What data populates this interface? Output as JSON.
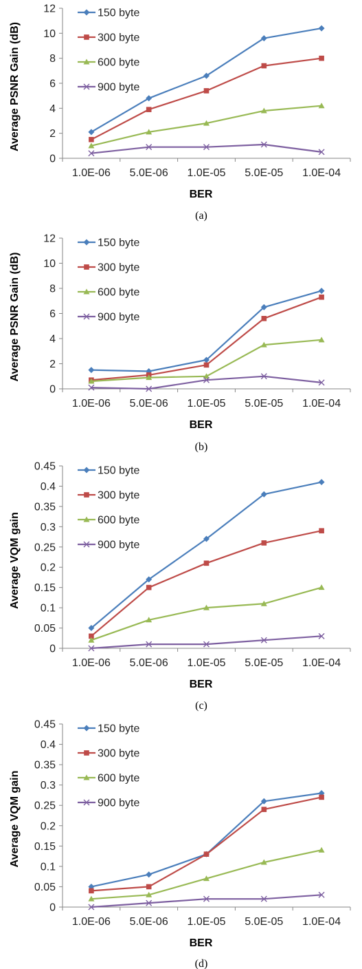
{
  "chart_data": [
    {
      "type": "line",
      "caption": "(a)",
      "categories": [
        "1.0E-06",
        "5.0E-06",
        "1.0E-05",
        "5.0E-05",
        "1.0E-04"
      ],
      "xlabel": "BER",
      "ylabel": "Average PSNR Gain (dB)",
      "ylim": [
        0,
        12
      ],
      "yticks": [
        "0",
        "2",
        "4",
        "6",
        "8",
        "10",
        "12"
      ],
      "grid": false,
      "legend": "top-left",
      "series": [
        {
          "name": "150 byte",
          "values": [
            2.1,
            4.8,
            6.6,
            9.6,
            10.4
          ],
          "color": "#4a7ebb",
          "marker": "diamond"
        },
        {
          "name": "300 byte",
          "values": [
            1.5,
            3.9,
            5.4,
            7.4,
            8.0
          ],
          "color": "#be4b48",
          "marker": "square"
        },
        {
          "name": "600 byte",
          "values": [
            1.0,
            2.1,
            2.8,
            3.8,
            4.2
          ],
          "color": "#98b954",
          "marker": "triangle"
        },
        {
          "name": "900 byte",
          "values": [
            0.4,
            0.9,
            0.9,
            1.1,
            0.5
          ],
          "color": "#7d5fa0",
          "marker": "x"
        }
      ]
    },
    {
      "type": "line",
      "caption": "(b)",
      "categories": [
        "1.0E-06",
        "5.0E-06",
        "1.0E-05",
        "5.0E-05",
        "1.0E-04"
      ],
      "xlabel": "BER",
      "ylabel": "Average PSNR Gain (dB)",
      "ylim": [
        0,
        12
      ],
      "yticks": [
        "0",
        "2",
        "4",
        "6",
        "8",
        "10",
        "12"
      ],
      "grid": false,
      "legend": "top-left",
      "series": [
        {
          "name": "150 byte",
          "values": [
            1.5,
            1.4,
            2.3,
            6.5,
            7.8
          ],
          "color": "#4a7ebb",
          "marker": "diamond"
        },
        {
          "name": "300 byte",
          "values": [
            0.7,
            1.1,
            1.9,
            5.6,
            7.3
          ],
          "color": "#be4b48",
          "marker": "square"
        },
        {
          "name": "600 byte",
          "values": [
            0.6,
            0.9,
            1.0,
            3.5,
            3.9
          ],
          "color": "#98b954",
          "marker": "triangle"
        },
        {
          "name": "900 byte",
          "values": [
            0.1,
            0.0,
            0.7,
            1.0,
            0.5
          ],
          "color": "#7d5fa0",
          "marker": "x"
        }
      ]
    },
    {
      "type": "line",
      "caption": "(c)",
      "categories": [
        "1.0E-06",
        "5.0E-06",
        "1.0E-05",
        "5.0E-05",
        "1.0E-04"
      ],
      "xlabel": "BER",
      "ylabel": "Average VQM gain",
      "ylim": [
        0,
        0.45
      ],
      "yticks": [
        "0",
        "0.05",
        "0.1",
        "0.15",
        "0.2",
        "0.25",
        "0.3",
        "0.35",
        "0.4",
        "0.45"
      ],
      "grid": false,
      "legend": "top-left",
      "series": [
        {
          "name": "150 byte",
          "values": [
            0.05,
            0.17,
            0.27,
            0.38,
            0.41
          ],
          "color": "#4a7ebb",
          "marker": "diamond"
        },
        {
          "name": "300 byte",
          "values": [
            0.03,
            0.15,
            0.21,
            0.26,
            0.29
          ],
          "color": "#be4b48",
          "marker": "square"
        },
        {
          "name": "600 byte",
          "values": [
            0.02,
            0.07,
            0.1,
            0.11,
            0.15
          ],
          "color": "#98b954",
          "marker": "triangle"
        },
        {
          "name": "900 byte",
          "values": [
            0.0,
            0.01,
            0.01,
            0.02,
            0.03
          ],
          "color": "#7d5fa0",
          "marker": "x"
        }
      ]
    },
    {
      "type": "line",
      "caption": "(d)",
      "categories": [
        "1.0E-06",
        "5.0E-06",
        "1.0E-05",
        "5.0E-05",
        "1.0E-04"
      ],
      "xlabel": "BER",
      "ylabel": "Average VQM gain",
      "ylim": [
        0,
        0.45
      ],
      "yticks": [
        "0",
        "0.05",
        "0.1",
        "0.15",
        "0.2",
        "0.25",
        "0.3",
        "0.35",
        "0.4",
        "0.45"
      ],
      "grid": false,
      "legend": "top-left",
      "series": [
        {
          "name": "150 byte",
          "values": [
            0.05,
            0.08,
            0.13,
            0.26,
            0.28
          ],
          "color": "#4a7ebb",
          "marker": "diamond"
        },
        {
          "name": "300 byte",
          "values": [
            0.04,
            0.05,
            0.13,
            0.24,
            0.27
          ],
          "color": "#be4b48",
          "marker": "square"
        },
        {
          "name": "600 byte",
          "values": [
            0.02,
            0.03,
            0.07,
            0.11,
            0.14
          ],
          "color": "#98b954",
          "marker": "triangle"
        },
        {
          "name": "900 byte",
          "values": [
            0.0,
            0.01,
            0.02,
            0.02,
            0.03
          ],
          "color": "#7d5fa0",
          "marker": "x"
        }
      ]
    }
  ]
}
